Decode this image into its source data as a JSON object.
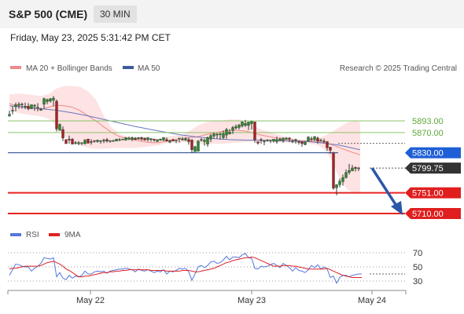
{
  "header": {
    "symbol": "S&P 500 (CME)",
    "timeframe": "30 MIN"
  },
  "datetime": "Friday, May 23, 2025 5:31:42 PM CET",
  "legend_main": [
    {
      "label": "MA 20 + Bollinger Bands",
      "color": "#f08a8a"
    },
    {
      "label": "MA 50",
      "color": "#3d5a99"
    }
  ],
  "copyright": "Research © 2025 Trading Central",
  "legend_rsi": [
    {
      "label": "RSI",
      "color": "#5577dd"
    },
    {
      "label": "9MA",
      "color": "#dd2222"
    }
  ],
  "colors": {
    "up": "#2a8a2a",
    "down": "#aa2222",
    "resistance": "#8cc36a",
    "support": "#e82222",
    "pivot": "#1f3e8a",
    "current": "#333333",
    "bb_fill": "#fde3e3",
    "ma50": "#6677bb",
    "arrow": "#2b57a8"
  },
  "chart_data": [
    {
      "type": "candlestick",
      "x_tick_labels": [
        "May 22",
        "May 23",
        "May 24"
      ],
      "y_range": [
        5680,
        5940
      ],
      "levels": [
        {
          "value": 5893.0,
          "label": "5893.00",
          "kind": "resistance"
        },
        {
          "value": 5870.0,
          "label": "5870.00",
          "kind": "resistance"
        },
        {
          "value": 5830.0,
          "label": "5830.00",
          "kind": "pivot"
        },
        {
          "value": 5799.75,
          "label": "5799.75",
          "kind": "current"
        },
        {
          "value": 5751.0,
          "label": "5751.00",
          "kind": "support"
        },
        {
          "value": 5710.0,
          "label": "5710.00",
          "kind": "support"
        }
      ],
      "bollinger": {
        "x": [
          0,
          10,
          20,
          30,
          40,
          50,
          60,
          70,
          80,
          90,
          100,
          110,
          120,
          130,
          140,
          150,
          160,
          170,
          180,
          190,
          200,
          210,
          220,
          230,
          240,
          250,
          260,
          270,
          280,
          290,
          300,
          310,
          320,
          330,
          340,
          350,
          360,
          370,
          380,
          390,
          400,
          410,
          420,
          430,
          440,
          446
        ],
        "upper": [
          5945,
          5947,
          5946,
          5944,
          5942,
          5946,
          5957,
          5962,
          5962,
          5960,
          5951,
          5935,
          5903,
          5880,
          5867,
          5862,
          5860,
          5858,
          5857,
          5858,
          5862,
          5864,
          5866,
          5874,
          5884,
          5890,
          5894,
          5894,
          5896,
          5896,
          5893,
          5884,
          5876,
          5872,
          5867,
          5862,
          5858,
          5856,
          5855,
          5858,
          5863,
          5871,
          5881,
          5890,
          5893,
          5890
        ],
        "lower": [
          5913,
          5909,
          5906,
          5904,
          5902,
          5897,
          5885,
          5862,
          5851,
          5845,
          5840,
          5838,
          5838,
          5839,
          5840,
          5839,
          5840,
          5841,
          5843,
          5845,
          5849,
          5850,
          5851,
          5850,
          5848,
          5847,
          5848,
          5848,
          5849,
          5850,
          5851,
          5852,
          5853,
          5852,
          5851,
          5850,
          5850,
          5849,
          5848,
          5846,
          5838,
          5815,
          5778,
          5757,
          5750,
          5750
        ],
        "ma20": [
          5927,
          5923,
          5920,
          5918,
          5916,
          5920,
          5924,
          5923,
          5920,
          5913,
          5903,
          5893,
          5881,
          5870,
          5862,
          5858,
          5855,
          5852,
          5850,
          5850,
          5853,
          5856,
          5858,
          5860,
          5862,
          5866,
          5869,
          5872,
          5874,
          5874,
          5873,
          5869,
          5865,
          5862,
          5859,
          5857,
          5855,
          5854,
          5853,
          5853,
          5850,
          5846,
          5840,
          5834,
          5829,
          5826
        ]
      },
      "ma50": {
        "x": [
          0,
          20,
          40,
          60,
          80,
          100,
          120,
          140,
          160,
          180,
          200,
          220,
          240,
          260,
          280,
          300,
          320,
          340,
          360,
          380,
          400,
          420,
          440,
          446
        ],
        "values": [
          5923,
          5920,
          5917,
          5914,
          5909,
          5903,
          5896,
          5889,
          5882,
          5876,
          5870,
          5865,
          5861,
          5858,
          5856,
          5855,
          5855,
          5854,
          5853,
          5852,
          5849,
          5845,
          5838,
          5836
        ]
      },
      "candles": [
        [
          5903,
          5913,
          5906,
          5901
        ],
        [
          5913,
          5922,
          5914,
          5906
        ],
        [
          5921,
          5929,
          5925,
          5912
        ],
        [
          5924,
          5930,
          5926,
          5917
        ],
        [
          5925,
          5929,
          5926,
          5917
        ],
        [
          5921,
          5929,
          5922,
          5916
        ],
        [
          5922,
          5928,
          5917,
          5914
        ],
        [
          5917,
          5921,
          5925,
          5916
        ],
        [
          5922,
          5926,
          5924,
          5913
        ],
        [
          5919,
          5928,
          5920,
          5912
        ],
        [
          5914,
          5919,
          5916,
          5913
        ],
        [
          5926,
          5939,
          5937,
          5917
        ],
        [
          5931,
          5937,
          5935,
          5926
        ],
        [
          5932,
          5938,
          5937,
          5929
        ],
        [
          5934,
          5942,
          5938,
          5922
        ],
        [
          5932,
          5935,
          5877,
          5872
        ],
        [
          5874,
          5888,
          5886,
          5874
        ],
        [
          5876,
          5882,
          5859,
          5853
        ],
        [
          5856,
          5857,
          5848,
          5848
        ],
        [
          5857,
          5864,
          5855,
          5848
        ],
        [
          5857,
          5859,
          5847,
          5847
        ],
        [
          5849,
          5853,
          5850,
          5846
        ],
        [
          5848,
          5853,
          5850,
          5845
        ],
        [
          5849,
          5850,
          5850,
          5845
        ],
        [
          5848,
          5857,
          5855,
          5846
        ],
        [
          5857,
          5858,
          5849,
          5848
        ],
        [
          5852,
          5857,
          5851,
          5846
        ],
        [
          5854,
          5855,
          5853,
          5850
        ],
        [
          5852,
          5856,
          5855,
          5850
        ],
        [
          5853,
          5855,
          5854,
          5848
        ],
        [
          5853,
          5858,
          5855,
          5849
        ],
        [
          5856,
          5859,
          5853,
          5850
        ],
        [
          5853,
          5855,
          5854,
          5850
        ],
        [
          5853,
          5856,
          5854,
          5852
        ],
        [
          5853,
          5858,
          5857,
          5853
        ],
        [
          5855,
          5859,
          5856,
          5853
        ],
        [
          5856,
          5858,
          5857,
          5855
        ],
        [
          5855,
          5861,
          5860,
          5854
        ],
        [
          5857,
          5862,
          5859,
          5855
        ],
        [
          5856,
          5862,
          5860,
          5853
        ],
        [
          5859,
          5861,
          5856,
          5855
        ],
        [
          5857,
          5861,
          5860,
          5856
        ],
        [
          5860,
          5862,
          5857,
          5854
        ],
        [
          5859,
          5860,
          5855,
          5854
        ],
        [
          5856,
          5861,
          5860,
          5852
        ],
        [
          5856,
          5859,
          5858,
          5852
        ],
        [
          5857,
          5858,
          5855,
          5852
        ],
        [
          5852,
          5853,
          5856,
          5852
        ],
        [
          5855,
          5858,
          5857,
          5854
        ],
        [
          5855,
          5861,
          5860,
          5853
        ],
        [
          5856,
          5860,
          5853,
          5852
        ],
        [
          5851,
          5856,
          5854,
          5849
        ],
        [
          5856,
          5858,
          5853,
          5853
        ],
        [
          5854,
          5855,
          5855,
          5849
        ],
        [
          5858,
          5859,
          5859,
          5850
        ],
        [
          5856,
          5861,
          5857,
          5854
        ],
        [
          5855,
          5861,
          5858,
          5853
        ],
        [
          5856,
          5860,
          5852,
          5846
        ],
        [
          5855,
          5857,
          5836,
          5830
        ],
        [
          5832,
          5844,
          5842,
          5832
        ],
        [
          5833,
          5855,
          5853,
          5833
        ],
        [
          5855,
          5859,
          5856,
          5852
        ],
        [
          5852,
          5858,
          5855,
          5844
        ],
        [
          5847,
          5862,
          5860,
          5842
        ],
        [
          5857,
          5867,
          5864,
          5851
        ],
        [
          5863,
          5870,
          5867,
          5858
        ],
        [
          5865,
          5869,
          5867,
          5858
        ],
        [
          5867,
          5870,
          5867,
          5856
        ],
        [
          5860,
          5874,
          5868,
          5857
        ],
        [
          5865,
          5879,
          5876,
          5858
        ],
        [
          5867,
          5877,
          5871,
          5866
        ],
        [
          5874,
          5883,
          5880,
          5867
        ],
        [
          5879,
          5886,
          5882,
          5876
        ],
        [
          5880,
          5887,
          5885,
          5876
        ],
        [
          5883,
          5892,
          5891,
          5880
        ],
        [
          5884,
          5895,
          5888,
          5881
        ],
        [
          5884,
          5890,
          5891,
          5875
        ],
        [
          5887,
          5893,
          5892,
          5876
        ],
        [
          5891,
          5891,
          5856,
          5850
        ],
        [
          5852,
          5852,
          5849,
          5846
        ],
        [
          5856,
          5859,
          5854,
          5848
        ],
        [
          5852,
          5855,
          5853,
          5845
        ],
        [
          5855,
          5857,
          5855,
          5852
        ],
        [
          5854,
          5856,
          5855,
          5849
        ],
        [
          5853,
          5857,
          5857,
          5850
        ],
        [
          5852,
          5862,
          5856,
          5848
        ],
        [
          5855,
          5860,
          5857,
          5853
        ],
        [
          5853,
          5860,
          5859,
          5850
        ],
        [
          5857,
          5861,
          5859,
          5855
        ],
        [
          5859,
          5861,
          5857,
          5851
        ],
        [
          5852,
          5857,
          5853,
          5849
        ],
        [
          5854,
          5858,
          5856,
          5848
        ],
        [
          5852,
          5854,
          5852,
          5846
        ],
        [
          5852,
          5852,
          5848,
          5842
        ],
        [
          5846,
          5853,
          5851,
          5845
        ],
        [
          5853,
          5863,
          5861,
          5852
        ],
        [
          5858,
          5862,
          5856,
          5853
        ],
        [
          5856,
          5863,
          5862,
          5853
        ],
        [
          5859,
          5862,
          5853,
          5848
        ],
        [
          5855,
          5858,
          5855,
          5852
        ],
        [
          5853,
          5858,
          5852,
          5849
        ],
        [
          5852,
          5853,
          5840,
          5834
        ],
        [
          5841,
          5842,
          5835,
          5828
        ],
        [
          5830,
          5832,
          5760,
          5757
        ],
        [
          5761,
          5768,
          5767,
          5746
        ],
        [
          5767,
          5779,
          5774,
          5762
        ],
        [
          5773,
          5787,
          5781,
          5765
        ],
        [
          5781,
          5797,
          5791,
          5779
        ],
        [
          5791,
          5808,
          5795,
          5787
        ],
        [
          5794,
          5806,
          5800,
          5794
        ],
        [
          5801,
          5803,
          5799,
          5793
        ],
        [
          5800,
          5802,
          5800,
          5794
        ]
      ]
    },
    {
      "type": "line",
      "title": "RSI",
      "y_ticks": [
        70,
        50,
        30
      ],
      "y_range": [
        15,
        90
      ],
      "series": [
        {
          "name": "RSI",
          "values": [
            38,
            46,
            54,
            53,
            51,
            50,
            50,
            44,
            48,
            51,
            55,
            63,
            62,
            61,
            63,
            36,
            42,
            34,
            32,
            38,
            34,
            37,
            36,
            38,
            44,
            40,
            40,
            43,
            44,
            43,
            44,
            41,
            44,
            45,
            46,
            47,
            47,
            48,
            47,
            46,
            43,
            47,
            45,
            44,
            46,
            44,
            42,
            44,
            43,
            46,
            40,
            44,
            43,
            45,
            48,
            47,
            48,
            43,
            31,
            40,
            50,
            52,
            49,
            52,
            57,
            58,
            55,
            56,
            60,
            65,
            60,
            64,
            64,
            63,
            67,
            69,
            63,
            62,
            48,
            47,
            51,
            50,
            51,
            53,
            55,
            52,
            49,
            55,
            52,
            49,
            44,
            49,
            45,
            44,
            42,
            46,
            52,
            49,
            53,
            47,
            50,
            47,
            35,
            37,
            27,
            35,
            38,
            38,
            36,
            38,
            39,
            40,
            40
          ]
        },
        {
          "name": "9MA",
          "values": [
            47,
            48,
            48,
            49,
            50,
            51,
            51,
            51,
            51,
            51,
            52,
            54,
            56,
            57,
            58,
            56,
            54,
            51,
            47,
            45,
            42,
            39,
            36,
            36,
            37,
            37,
            38,
            39,
            40,
            41,
            42,
            42,
            43,
            43,
            44,
            44,
            45,
            45,
            46,
            46,
            46,
            46,
            46,
            46,
            46,
            45,
            45,
            45,
            45,
            45,
            44,
            44,
            44,
            44,
            44,
            45,
            45,
            45,
            44,
            43,
            43,
            44,
            45,
            46,
            47,
            48,
            50,
            52,
            54,
            56,
            57,
            59,
            60,
            61,
            62,
            63,
            63,
            64,
            63,
            61,
            59,
            57,
            55,
            53,
            51,
            51,
            51,
            52,
            52,
            52,
            51,
            51,
            50,
            49,
            48,
            47,
            47,
            47,
            47,
            47,
            47,
            48,
            46,
            44,
            42,
            40,
            38,
            37,
            36,
            35,
            35,
            35,
            35
          ]
        }
      ]
    }
  ]
}
